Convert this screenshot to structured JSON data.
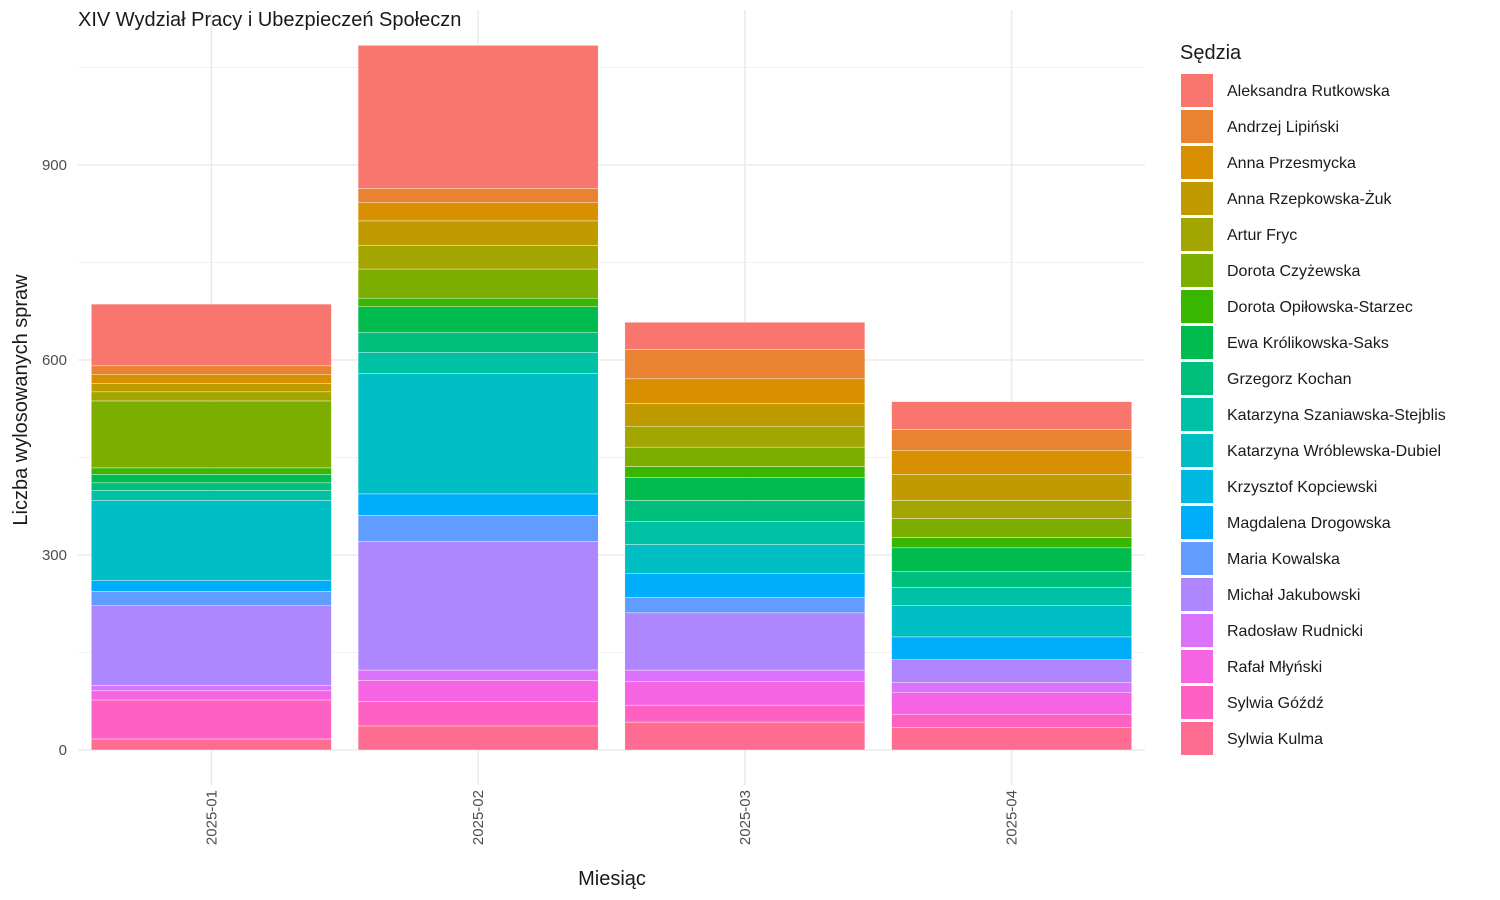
{
  "chart_data": {
    "type": "bar",
    "stacked": true,
    "title": "XIV Wydział Pracy i Ubezpieczeń Społeczn",
    "xlabel": "Miesiąc",
    "ylabel": "Liczba wylosowanych spraw",
    "ylim": [
      0,
      1100
    ],
    "yticks": [
      0,
      300,
      600,
      900
    ],
    "grid": true,
    "legend_title": "Sędzia",
    "legend_position": "right",
    "categories": [
      "2025-01",
      "2025-02",
      "2025-03",
      "2025-04"
    ],
    "series": [
      {
        "name": "Aleksandra Rutkowska",
        "color": "#F8766D",
        "values": [
          95,
          220,
          42,
          43
        ]
      },
      {
        "name": "Andrzej Lipiński",
        "color": "#EA8331",
        "values": [
          13,
          22,
          45,
          32
        ]
      },
      {
        "name": "Anna Przesmycka",
        "color": "#D89000",
        "values": [
          14,
          28,
          38,
          37
        ]
      },
      {
        "name": "Anna Rzepkowska-Żuk",
        "color": "#C09B00",
        "values": [
          13,
          38,
          35,
          40
        ]
      },
      {
        "name": "Artur Fryc",
        "color": "#A3A500",
        "values": [
          14,
          36,
          32,
          28
        ]
      },
      {
        "name": "Dorota Czyżewska",
        "color": "#7CAE00",
        "values": [
          103,
          45,
          30,
          29
        ]
      },
      {
        "name": "Dorota Opiłowska-Starzec",
        "color": "#39B600",
        "values": [
          10,
          13,
          17,
          16
        ]
      },
      {
        "name": "Ewa Królikowska-Saks",
        "color": "#00BB4E",
        "values": [
          13,
          40,
          35,
          36
        ]
      },
      {
        "name": "Grzegorz Kochan",
        "color": "#00BF7D",
        "values": [
          12,
          30,
          32,
          25
        ]
      },
      {
        "name": "Katarzyna Szaniawska-Stejblis",
        "color": "#00C1A3",
        "values": [
          15,
          33,
          36,
          28
        ]
      },
      {
        "name": "Katarzyna Wróblewska-Dubiel",
        "color": "#00BFC4",
        "values": [
          123,
          185,
          44,
          48
        ]
      },
      {
        "name": "Krzysztof Kopciewski",
        "color": "#00B9E3",
        "values": [
          0,
          0,
          0,
          0
        ]
      },
      {
        "name": "Magdalena Drogowska",
        "color": "#00ADFA",
        "values": [
          17,
          33,
          37,
          35
        ]
      },
      {
        "name": "Maria Kowalska",
        "color": "#619CFF",
        "values": [
          22,
          40,
          24,
          0
        ]
      },
      {
        "name": "Michał Jakubowski",
        "color": "#AE87FF",
        "values": [
          123,
          198,
          88,
          35
        ]
      },
      {
        "name": "Radosław Rudnicki",
        "color": "#DB72FB",
        "values": [
          8,
          16,
          18,
          16
        ]
      },
      {
        "name": "Rafał Młyński",
        "color": "#F564E3",
        "values": [
          14,
          32,
          36,
          33
        ]
      },
      {
        "name": "Sylwia Góźdź",
        "color": "#FF61C3",
        "values": [
          60,
          38,
          26,
          20
        ]
      },
      {
        "name": "Sylwia Kulma",
        "color": "#FF6C91",
        "values": [
          17,
          37,
          43,
          35
        ]
      }
    ]
  }
}
